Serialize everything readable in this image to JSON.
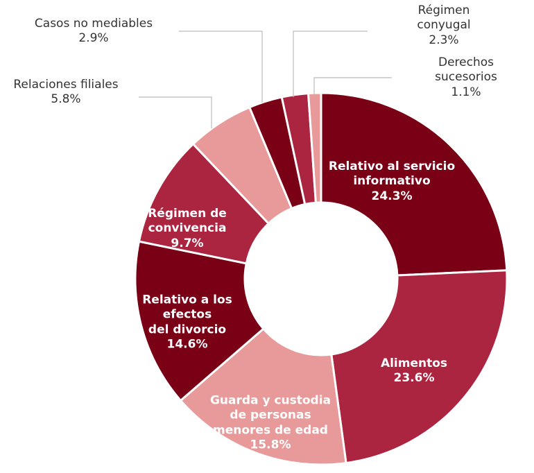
{
  "chart_data": {
    "type": "donut",
    "categories": [
      "Relativo al servicio\ninformativo",
      "Alimentos",
      "Guarda y custodia\nde personas\nmenores de edad",
      "Relativo a los\nefectos\ndel divorcio",
      "Régimen de\nconvivencia",
      "Relaciones filiales",
      "Casos no mediables",
      "Régimen conyugal",
      "Derechos sucesorios"
    ],
    "values": [
      24.3,
      23.6,
      15.8,
      14.6,
      9.7,
      5.8,
      2.9,
      2.3,
      1.1
    ],
    "value_labels": [
      "24.3%",
      "23.6%",
      "15.8%",
      "14.6%",
      "9.7%",
      "5.8%",
      "2.9%",
      "2.3%",
      "1.1%"
    ],
    "colors": [
      "#7a0016",
      "#ab2440",
      "#e89a9a",
      "#7a0016",
      "#ab2440",
      "#e89a9a",
      "#7a0016",
      "#ab2440",
      "#e89a9a"
    ]
  }
}
